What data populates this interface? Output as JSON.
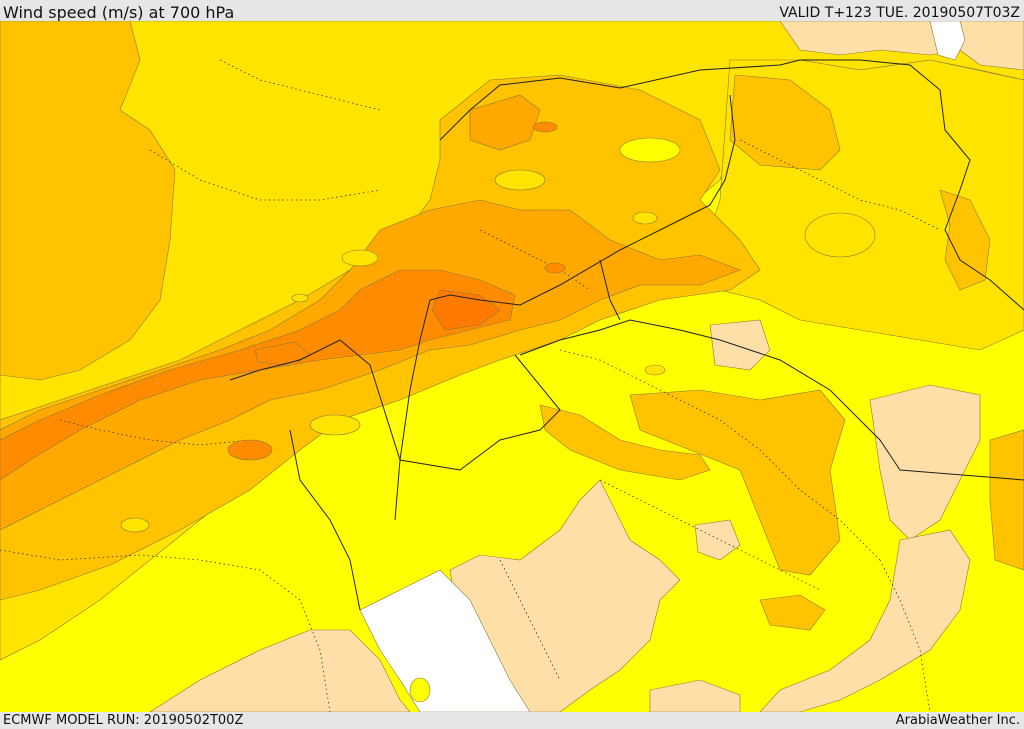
{
  "header": {
    "title": "Wind speed (m/s) at 700 hPa",
    "valid_time": "VALID T+123 TUE. 20190507T03Z"
  },
  "footer": {
    "model_run": "ECMWF MODEL RUN: 20190502T00Z",
    "provider": "ArabiaWeather Inc."
  },
  "map": {
    "palette": {
      "calm": "#ffdfa8",
      "low": "#ffff00",
      "moderate": "#ffe400",
      "fresh": "#ffc300",
      "strong": "#ffa800",
      "very_strong": "#ff8c00",
      "extreme": "#ff7a00",
      "no_data": "#ffffff",
      "contour_line": "#8a7a40",
      "border_line": "#222222"
    }
  }
}
